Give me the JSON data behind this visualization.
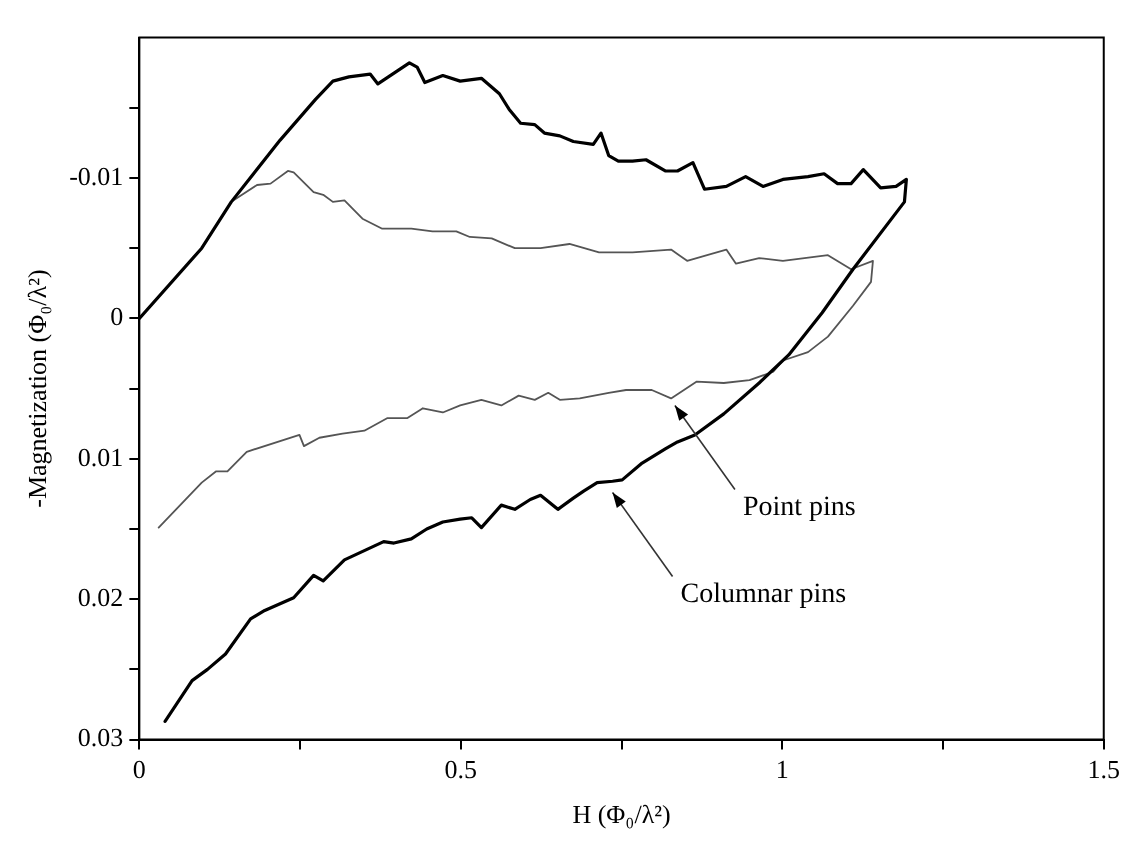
{
  "chart_data": {
    "type": "line",
    "xlabel": "H (Φ₀/λ²)",
    "ylabel": "-Magnetization (Φ₀/λ²)",
    "xlim": [
      0,
      1.5
    ],
    "xticks": [
      0,
      {
        "value": 0.25,
        "label": null
      },
      0.5,
      {
        "value": 0.75,
        "label": null
      },
      1,
      {
        "value": 1.25,
        "label": null
      },
      1.5
    ],
    "ylim": [
      0.03,
      -0.02
    ],
    "yticks": [
      {
        "value": -0.015,
        "label": null
      },
      -0.01,
      {
        "value": -0.005,
        "label": null
      },
      0,
      {
        "value": 0.005,
        "label": null
      },
      0.01,
      {
        "value": 0.015,
        "label": null
      },
      0.02,
      {
        "value": 0.025,
        "label": null
      },
      0.03
    ],
    "grid": false,
    "legend": false,
    "marker": "none",
    "line_style": "solid",
    "series": [
      {
        "color": "#000000",
        "x": [
          0,
          0.097,
          0.143,
          0.219,
          0.274,
          0.301,
          0.326,
          0.359,
          0.371,
          0.42,
          0.432,
          0.444,
          0.472,
          0.499,
          0.532,
          0.56,
          0.575,
          0.593,
          0.615,
          0.63,
          0.654,
          0.675,
          0.706,
          0.718,
          0.73,
          0.745,
          0.767,
          0.788,
          0.818,
          0.837,
          0.861,
          0.879,
          0.913,
          0.943,
          0.97,
          1.001,
          1.04,
          1.065,
          1.086,
          1.107,
          1.126,
          1.153,
          1.177,
          1.193,
          1.19,
          1.11,
          1.062,
          1.01,
          0.964,
          0.909,
          0.864,
          0.837,
          0.818,
          0.782,
          0.751,
          0.736,
          0.712,
          0.691,
          0.675,
          0.651,
          0.624,
          0.608,
          0.584,
          0.563,
          0.532,
          0.517,
          0.499,
          0.472,
          0.447,
          0.423,
          0.396,
          0.38,
          0.319,
          0.286,
          0.271,
          0.24,
          0.195,
          0.173,
          0.134,
          0.106,
          0.082,
          0.04
        ],
        "values": [
          0,
          -0.005,
          -0.0083,
          -0.0127,
          -0.0156,
          -0.0169,
          -0.0172,
          -0.0174,
          -0.0167,
          -0.0182,
          -0.0179,
          -0.0168,
          -0.0173,
          -0.0169,
          -0.0171,
          -0.016,
          -0.0149,
          -0.0139,
          -0.0138,
          -0.0132,
          -0.013,
          -0.0126,
          -0.0124,
          -0.0132,
          -0.0116,
          -0.0112,
          -0.0112,
          -0.0113,
          -0.0105,
          -0.0105,
          -0.0111,
          -0.0092,
          -0.0094,
          -0.0101,
          -0.0094,
          -0.0099,
          -0.0101,
          -0.0103,
          -0.0096,
          -0.0096,
          -0.0106,
          -0.0093,
          -0.0094,
          -0.0099,
          -0.0083,
          -0.0035,
          -0.0004,
          0.0026,
          0.0046,
          0.0068,
          0.0083,
          0.0088,
          0.0093,
          0.0103,
          0.0115,
          0.0116,
          0.0117,
          0.0123,
          0.0128,
          0.0136,
          0.0126,
          0.0129,
          0.0136,
          0.0133,
          0.0149,
          0.0142,
          0.0143,
          0.0145,
          0.015,
          0.0157,
          0.016,
          0.0159,
          0.0172,
          0.0187,
          0.0183,
          0.0199,
          0.0208,
          0.0214,
          0.0239,
          0.025,
          0.0258,
          0.0287
        ]
      },
      {
        "color": "#555555",
        "x": [
          0,
          0.097,
          0.143,
          0.183,
          0.204,
          0.231,
          0.24,
          0.271,
          0.286,
          0.301,
          0.319,
          0.347,
          0.377,
          0.423,
          0.456,
          0.493,
          0.514,
          0.548,
          0.584,
          0.624,
          0.669,
          0.715,
          0.767,
          0.827,
          0.852,
          0.913,
          0.928,
          0.964,
          1.001,
          1.071,
          1.107,
          1.141,
          1.138,
          1.11,
          1.071,
          1.04,
          1.001,
          0.986,
          0.949,
          0.909,
          0.867,
          0.827,
          0.797,
          0.757,
          0.73,
          0.685,
          0.654,
          0.636,
          0.615,
          0.59,
          0.563,
          0.532,
          0.499,
          0.472,
          0.441,
          0.417,
          0.386,
          0.35,
          0.316,
          0.28,
          0.256,
          0.249,
          0.167,
          0.137,
          0.119,
          0.097,
          0.03
        ],
        "values": [
          0,
          -0.005,
          -0.0083,
          -0.0095,
          -0.0096,
          -0.0105,
          -0.0104,
          -0.009,
          -0.0088,
          -0.0083,
          -0.0084,
          -0.0071,
          -0.0064,
          -0.0064,
          -0.0062,
          -0.0062,
          -0.0058,
          -0.0057,
          -0.005,
          -0.005,
          -0.0053,
          -0.0047,
          -0.0047,
          -0.0049,
          -0.0041,
          -0.0049,
          -0.0039,
          -0.0043,
          -0.0041,
          -0.0045,
          -0.0035,
          -0.0041,
          -0.0026,
          -0.0009,
          0.0013,
          0.0024,
          0.003,
          0.0038,
          0.0044,
          0.0046,
          0.0045,
          0.0057,
          0.0051,
          0.0051,
          0.0053,
          0.0057,
          0.0058,
          0.0053,
          0.0058,
          0.0055,
          0.0062,
          0.0058,
          0.0062,
          0.0067,
          0.0064,
          0.0071,
          0.0071,
          0.008,
          0.0082,
          0.0085,
          0.0091,
          0.0083,
          0.0095,
          0.0109,
          0.0109,
          0.0117,
          0.0149
        ]
      }
    ],
    "annotations": [
      {
        "text": "Point pins",
        "x": 0.833,
        "y": 0.0062
      },
      {
        "text": "Columnar pins",
        "x": 0.736,
        "y": 0.0124
      }
    ]
  }
}
